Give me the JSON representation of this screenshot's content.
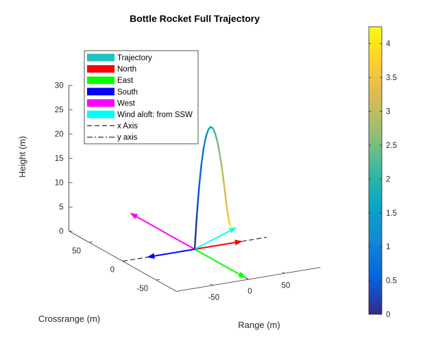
{
  "chart_data": {
    "type": "line",
    "title": "Bottle Rocket Full Trajectory",
    "xlabel": "Range (m)",
    "ylabel": "Crossrange (m)",
    "zlabel": "Height (m)",
    "xlim": [
      -100,
      100
    ],
    "ylim": [
      -80,
      80
    ],
    "zlim": [
      0,
      30
    ],
    "xticks": [
      -50,
      0,
      50
    ],
    "yticks": [
      -50,
      0,
      50
    ],
    "zticks": [
      0,
      5,
      10,
      15,
      20,
      25,
      30
    ],
    "grid": false,
    "legend_position": "top-left",
    "trajectory": {
      "name": "Trajectory",
      "x": [
        0,
        5,
        10,
        15,
        20,
        25,
        30,
        35,
        40,
        45,
        50,
        55,
        60,
        65,
        70,
        74,
        77,
        79,
        80
      ],
      "y": [
        0,
        2,
        4,
        6,
        8,
        10,
        12,
        14,
        16,
        18,
        20,
        22,
        24,
        26,
        28,
        29.6,
        30.8,
        31.6,
        32
      ],
      "z": [
        0,
        7,
        12.5,
        16.7,
        19.8,
        21.8,
        22.9,
        23.2,
        22.7,
        21.4,
        19.5,
        16.8,
        13.6,
        9.8,
        5.6,
        2.7,
        1.2,
        0.4,
        0
      ]
    },
    "colorbar": {
      "min": 0,
      "max": 4.25,
      "ticks": [
        0,
        0.5,
        1,
        1.5,
        2,
        2.5,
        3,
        3.5,
        4
      ],
      "colormap": "parula"
    },
    "direction_vectors": [
      {
        "name": "North",
        "color": "#ff0000",
        "dx": 65,
        "dy": 0,
        "dz": 0
      },
      {
        "name": "East",
        "color": "#00ff00",
        "dx": 0,
        "dy": -75,
        "dz": 0
      },
      {
        "name": "South",
        "color": "#0000ff",
        "dx": -65,
        "dy": 0,
        "dz": 0
      },
      {
        "name": "West",
        "color": "#ff00ff",
        "dx": 0,
        "dy": 95,
        "dz": 0
      },
      {
        "name": "Wind aloft: from SSW",
        "color": "#00ffff",
        "dx": 85,
        "dy": 30,
        "dz": 0
      }
    ],
    "axis_lines": [
      {
        "name": "x Axis",
        "style": "dashed",
        "from": [
          -100,
          0,
          0
        ],
        "to": [
          100,
          0,
          0
        ]
      },
      {
        "name": "y axis",
        "style": "dashdot",
        "from": [
          0,
          -80,
          0
        ],
        "to": [
          0,
          80,
          0
        ]
      }
    ],
    "legend": [
      {
        "label": "Trajectory",
        "color": "#1fc2c2",
        "kind": "patch"
      },
      {
        "label": "North",
        "color": "#ff0000",
        "kind": "patch"
      },
      {
        "label": "East",
        "color": "#00ff00",
        "kind": "patch"
      },
      {
        "label": "South",
        "color": "#0000ff",
        "kind": "patch"
      },
      {
        "label": "West",
        "color": "#ff00ff",
        "kind": "patch"
      },
      {
        "label": "Wind aloft: from SSW",
        "color": "#00ffff",
        "kind": "patch"
      },
      {
        "label": "x Axis",
        "color": "#000000",
        "kind": "dashed"
      },
      {
        "label": "y axis",
        "color": "#000000",
        "kind": "dashdot"
      }
    ]
  }
}
